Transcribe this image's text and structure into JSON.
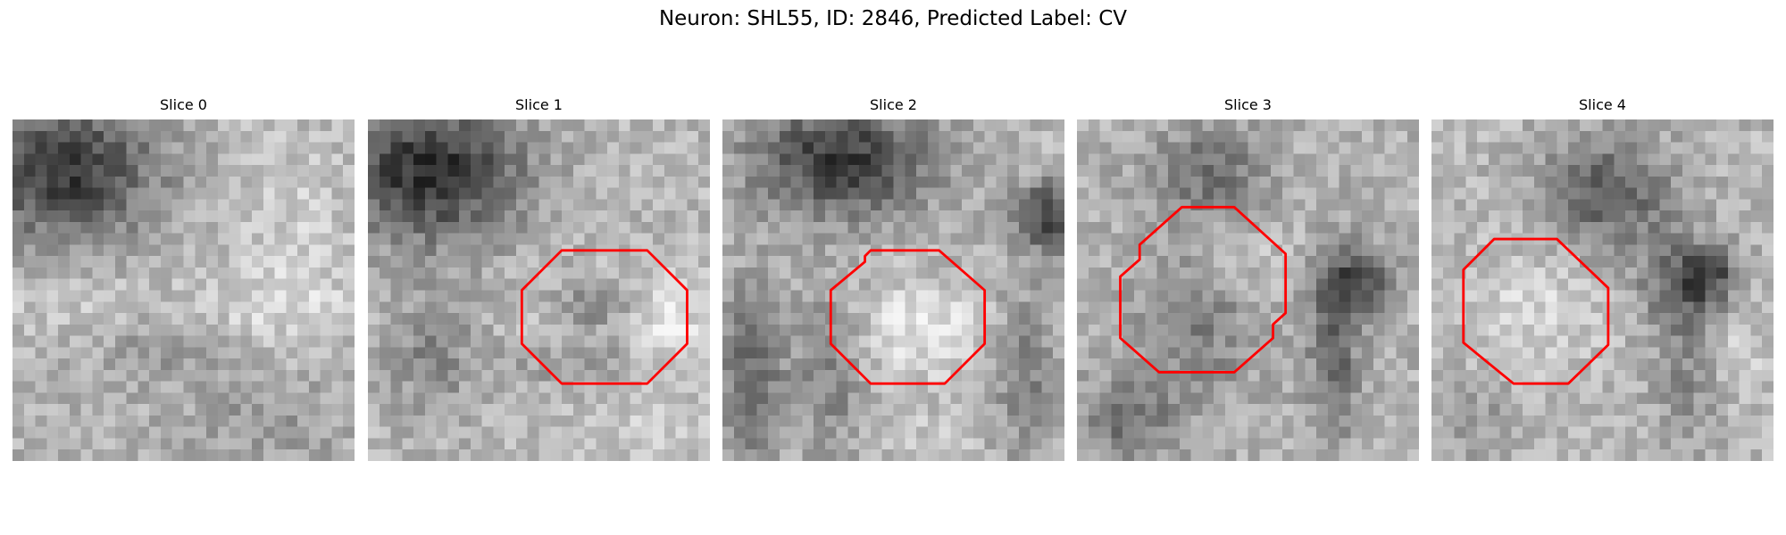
{
  "figure": {
    "title": "Neuron: SHL55, ID: 2846, Predicted Label: CV"
  },
  "outline_color": "#ff0000",
  "panels": [
    {
      "title": "Slice 0",
      "has_outline": false
    },
    {
      "title": "Slice 1",
      "has_outline": true
    },
    {
      "title": "Slice 2",
      "has_outline": true
    },
    {
      "title": "Slice 3",
      "has_outline": true
    },
    {
      "title": "Slice 4",
      "has_outline": true
    }
  ]
}
